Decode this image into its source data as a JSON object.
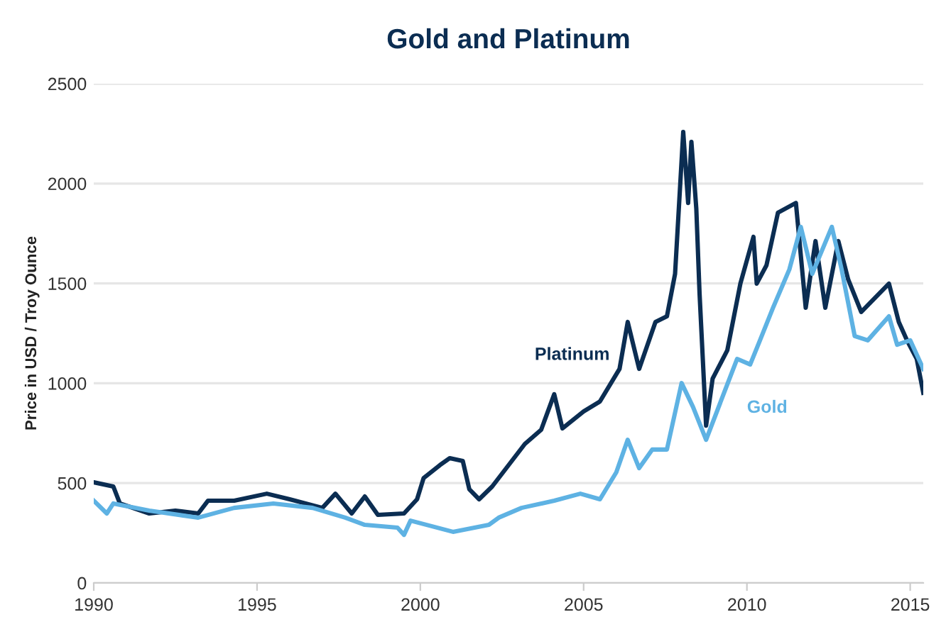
{
  "chart_data": {
    "type": "line",
    "title": "Gold and Platinum",
    "ylabel": "Price in USD / Troy Ounce",
    "series": [
      {
        "name": "Platinum",
        "color": "#0b2d52",
        "x": [
          1990.0,
          1990.6,
          1990.8,
          1991.7,
          1992.5,
          1993.2,
          1993.5,
          1994.3,
          1995.3,
          1996.0,
          1997.0,
          1997.4,
          1997.9,
          1998.3,
          1998.7,
          1999.5,
          1999.9,
          2000.1,
          2000.6,
          2000.9,
          2001.3,
          2001.5,
          2001.8,
          2002.2,
          2003.2,
          2003.7,
          2004.1,
          2004.35,
          2005.0,
          2005.5,
          2006.1,
          2006.35,
          2006.7,
          2007.2,
          2007.55,
          2007.8,
          2008.05,
          2008.2,
          2008.3,
          2008.45,
          2008.55,
          2008.75,
          2008.95,
          2009.4,
          2009.8,
          2010.2,
          2010.3,
          2010.6,
          2010.95,
          2011.5,
          2011.8,
          2012.1,
          2012.4,
          2012.8,
          2013.1,
          2013.5,
          2014.35,
          2014.65,
          2014.9,
          2015.2,
          2015.4
        ],
        "values": [
          504,
          483,
          398,
          348,
          362,
          348,
          412,
          412,
          447,
          419,
          376,
          447,
          348,
          433,
          341,
          348,
          419,
          525,
          590,
          625,
          611,
          469,
          419,
          483,
          696,
          767,
          945,
          774,
          859,
          909,
          1072,
          1307,
          1072,
          1307,
          1335,
          1548,
          2258,
          1903,
          2209,
          1875,
          1449,
          788,
          1023,
          1165,
          1499,
          1733,
          1499,
          1591,
          1854,
          1903,
          1378,
          1712,
          1378,
          1712,
          1520,
          1357,
          1499,
          1307,
          1215,
          1122,
          952
        ]
      },
      {
        "name": "Gold",
        "color": "#5eb2e3",
        "x": [
          1990.0,
          1990.4,
          1990.6,
          1991.7,
          1993.2,
          1994.3,
          1995.5,
          1996.7,
          1997.7,
          1998.3,
          1999.3,
          1999.5,
          1999.7,
          2001.0,
          2002.1,
          2002.4,
          2003.1,
          2004.1,
          2004.9,
          2005.5,
          2006.0,
          2006.35,
          2006.7,
          2007.1,
          2007.55,
          2008.0,
          2008.35,
          2008.75,
          2009.3,
          2009.7,
          2010.1,
          2010.4,
          2010.8,
          2011.3,
          2011.65,
          2012.0,
          2012.6,
          2012.9,
          2013.3,
          2013.7,
          2014.35,
          2014.6,
          2015.0,
          2015.4
        ],
        "values": [
          412,
          348,
          398,
          362,
          327,
          376,
          398,
          376,
          327,
          291,
          277,
          241,
          312,
          256,
          291,
          327,
          376,
          412,
          447,
          419,
          554,
          717,
          575,
          668,
          668,
          1001,
          881,
          717,
          952,
          1122,
          1094,
          1215,
          1378,
          1570,
          1783,
          1548,
          1783,
          1570,
          1236,
          1215,
          1335,
          1193,
          1215,
          1072
        ]
      }
    ],
    "xlim": [
      1990,
      2015.4
    ],
    "xticks": [
      1990,
      1995,
      2000,
      2005,
      2010,
      2015
    ],
    "ylim": [
      0,
      2500
    ],
    "yticks": [
      0,
      500,
      1000,
      1500,
      2000,
      2500
    ],
    "grid": "y",
    "legend": false,
    "line_style": "solid",
    "marker": "none"
  }
}
